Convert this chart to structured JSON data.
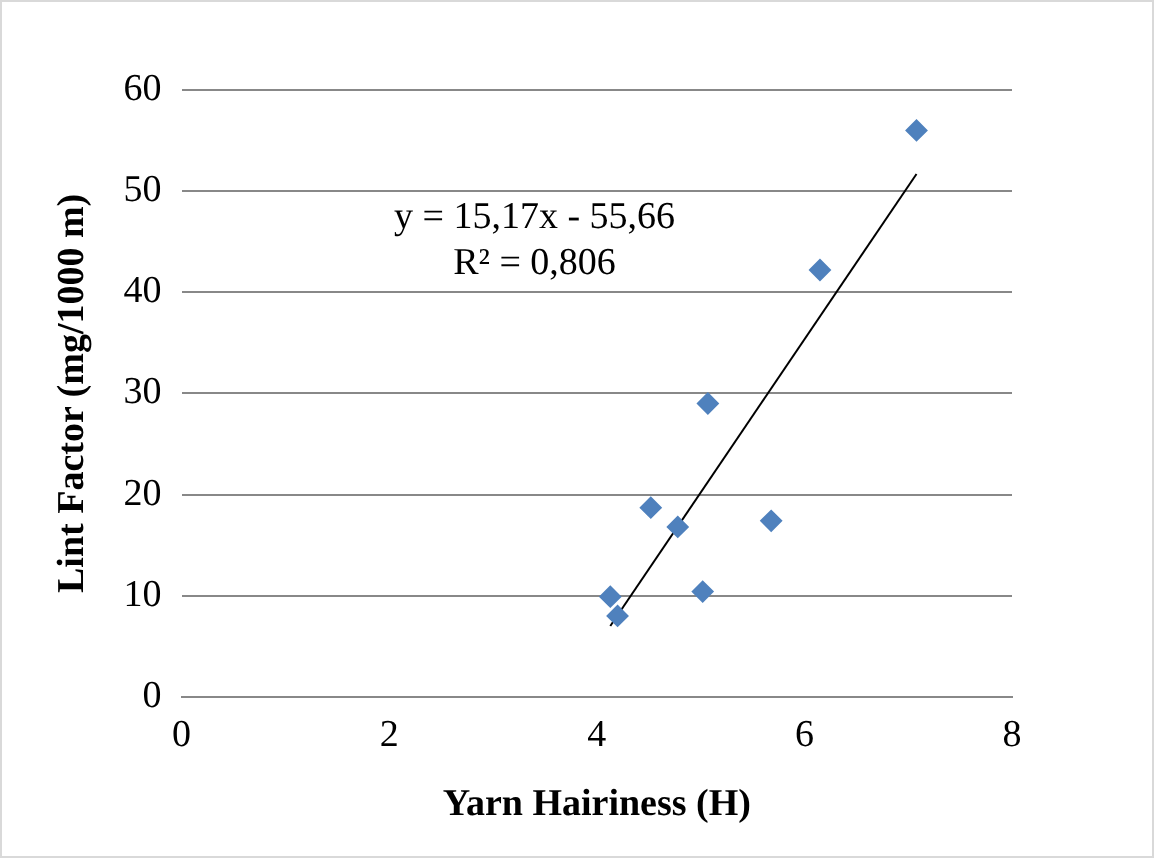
{
  "chart_data": {
    "type": "scatter",
    "xlabel": "Yarn Hairiness (H)",
    "ylabel": "Lint Factor (mg/1000 m)",
    "xlim": [
      0,
      8
    ],
    "xticks": [
      0,
      2,
      4,
      6,
      8
    ],
    "ylim": [
      0,
      60
    ],
    "yticks": [
      0,
      10,
      20,
      30,
      40,
      50,
      60
    ],
    "grid": "y",
    "legend": false,
    "marker": "diamond",
    "series": [
      {
        "type": "scatter",
        "color": "#4f81bd",
        "x": [
          7.08,
          6.15,
          5.07,
          4.52,
          4.78,
          5.68,
          4.13,
          4.2,
          5.02
        ],
        "values": [
          56.0,
          42.2,
          29.0,
          18.7,
          16.8,
          17.4,
          9.9,
          8.0,
          10.4
        ]
      },
      {
        "type": "line",
        "color": "#000000",
        "marker": "none",
        "x": [
          4.13,
          7.08
        ],
        "values": [
          7.0,
          51.7
        ]
      }
    ],
    "annotations": [
      "y = 15,17x - 55,66",
      "R² = 0,806"
    ]
  }
}
